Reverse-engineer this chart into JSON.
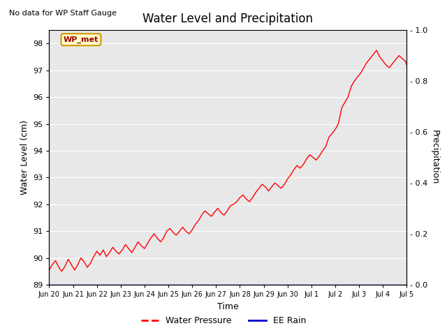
{
  "title": "Water Level and Precipitation",
  "top_left_text": "No data for WP Staff Gauge",
  "ylabel_left": "Water Level (cm)",
  "ylabel_right": "Precipitation",
  "xlabel": "Time",
  "ylim_left": [
    89.0,
    98.5
  ],
  "ylim_right": [
    0.0,
    1.0
  ],
  "yticks_left": [
    89.0,
    90.0,
    91.0,
    92.0,
    93.0,
    94.0,
    95.0,
    96.0,
    97.0,
    98.0
  ],
  "yticks_right": [
    0.0,
    0.2,
    0.4,
    0.6,
    0.8,
    1.0
  ],
  "xtick_labels": [
    "Jun 20",
    "Jun 21",
    "Jun 22",
    "Jun 23",
    "Jun 24",
    "Jun 25",
    "Jun 26",
    "Jun 27",
    "Jun 28",
    "Jun 29",
    "Jun 30",
    "Jul 1",
    "Jul 2",
    "Jul 3",
    "Jul 4",
    "Jul 5"
  ],
  "legend_entries": [
    "Water Pressure",
    "EE Rain"
  ],
  "line_color": "#ff0000",
  "rain_color": "#0000cc",
  "background_color": "#e8e8e8",
  "wp_met_box_color": "#ffffcc",
  "wp_met_box_edge": "#cc9900",
  "wp_met_text_color": "#990000",
  "title_fontsize": 12,
  "label_fontsize": 9,
  "tick_fontsize": 8,
  "water_level_x": [
    0.0,
    0.13,
    0.27,
    0.4,
    0.53,
    0.67,
    0.8,
    0.93,
    1.07,
    1.2,
    1.33,
    1.47,
    1.6,
    1.73,
    1.87,
    2.0,
    2.13,
    2.27,
    2.4,
    2.53,
    2.67,
    2.8,
    2.93,
    3.07,
    3.2,
    3.33,
    3.47,
    3.6,
    3.73,
    3.87,
    4.0,
    4.13,
    4.27,
    4.4,
    4.53,
    4.67,
    4.8,
    4.93,
    5.07,
    5.2,
    5.33,
    5.47,
    5.6,
    5.73,
    5.87,
    6.0,
    6.13,
    6.27,
    6.4,
    6.53,
    6.67,
    6.8,
    6.93,
    7.07,
    7.2,
    7.33,
    7.47,
    7.6,
    7.73,
    7.87,
    8.0,
    8.13,
    8.27,
    8.4,
    8.53,
    8.67,
    8.8,
    8.93,
    9.07,
    9.2,
    9.33,
    9.47,
    9.6,
    9.73,
    9.87,
    10.0,
    10.13,
    10.27,
    10.4,
    10.53,
    10.67,
    10.8,
    10.93,
    11.07,
    11.2,
    11.33,
    11.47,
    11.6,
    11.73,
    11.87,
    12.0,
    12.13,
    12.27,
    12.4,
    12.53,
    12.67,
    12.8,
    12.93,
    13.07,
    13.2,
    13.33,
    13.47,
    13.6,
    13.73,
    13.87,
    14.0,
    14.13,
    14.27,
    14.4,
    14.53,
    14.67,
    14.8,
    14.93,
    15.0
  ],
  "water_level_y": [
    89.55,
    89.75,
    89.9,
    89.65,
    89.5,
    89.7,
    89.95,
    89.75,
    89.55,
    89.75,
    90.0,
    89.85,
    89.65,
    89.8,
    90.05,
    90.25,
    90.1,
    90.3,
    90.05,
    90.2,
    90.4,
    90.25,
    90.15,
    90.3,
    90.5,
    90.35,
    90.2,
    90.4,
    90.6,
    90.45,
    90.35,
    90.55,
    90.75,
    90.9,
    90.75,
    90.6,
    90.75,
    91.0,
    91.1,
    90.95,
    90.85,
    91.0,
    91.15,
    91.0,
    90.9,
    91.05,
    91.25,
    91.4,
    91.6,
    91.75,
    91.65,
    91.55,
    91.7,
    91.85,
    91.7,
    91.6,
    91.75,
    91.95,
    92.0,
    92.1,
    92.25,
    92.35,
    92.2,
    92.1,
    92.25,
    92.45,
    92.6,
    92.75,
    92.65,
    92.5,
    92.65,
    92.8,
    92.7,
    92.6,
    92.75,
    92.95,
    93.1,
    93.3,
    93.45,
    93.35,
    93.5,
    93.7,
    93.85,
    93.75,
    93.65,
    93.8,
    94.0,
    94.15,
    94.5,
    94.65,
    94.8,
    95.0,
    95.6,
    95.8,
    96.0,
    96.4,
    96.6,
    96.75,
    96.9,
    97.1,
    97.3,
    97.45,
    97.6,
    97.75,
    97.5,
    97.35,
    97.2,
    97.1,
    97.25,
    97.4,
    97.55,
    97.45,
    97.35,
    97.2
  ]
}
